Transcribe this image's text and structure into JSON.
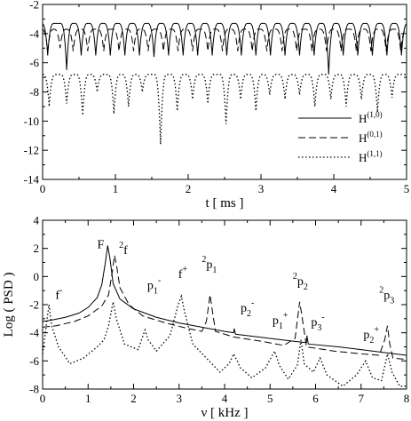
{
  "chart_data": [
    {
      "type": "line",
      "xlabel": "t [ ms ]",
      "ylabel": "",
      "xlim": [
        0,
        5
      ],
      "ylim": [
        -14,
        -2
      ],
      "xticks": [
        0,
        1,
        2,
        3,
        4,
        5
      ],
      "yticks": [
        -2,
        -4,
        -6,
        -8,
        -10,
        -12,
        -14
      ],
      "legend_position": "lower-right",
      "series": [
        {
          "name": "H",
          "name_sup": "(1,0)",
          "style": "solid",
          "baseline": -3.3,
          "dip_times": [
            0.07,
            0.33,
            0.53,
            0.73,
            0.93,
            1.13,
            1.33,
            1.53,
            1.73,
            1.93,
            2.13,
            2.33,
            2.53,
            2.73,
            2.93,
            3.13,
            3.33,
            3.53,
            3.73,
            3.93,
            4.13,
            4.33,
            4.53,
            4.73,
            4.93
          ],
          "dip_values": [
            -5.5,
            -6.5,
            -5.5,
            -5.5,
            -5.5,
            -5.5,
            -5.5,
            -5.6,
            -5.5,
            -5.5,
            -5.5,
            -5.5,
            -5.5,
            -5.5,
            -5.5,
            -5.5,
            -5.5,
            -5.5,
            -5.5,
            -6.8,
            -5.5,
            -5.5,
            -5.5,
            -5.5,
            -5.5
          ]
        },
        {
          "name": "H",
          "name_sup": "(0,1)",
          "style": "dashed",
          "baseline": -3.7,
          "dip_times": [
            0.07,
            0.24,
            0.42,
            0.62,
            0.84,
            1.05,
            1.25,
            1.45,
            1.66,
            1.86,
            2.06,
            2.27,
            2.47,
            2.68,
            2.88,
            3.08,
            3.29,
            3.49,
            3.7,
            3.9,
            4.1,
            4.31,
            4.51,
            4.72,
            4.92
          ],
          "dip_values": [
            -5.2,
            -5.0,
            -5.2,
            -5.2,
            -5.2,
            -5.2,
            -5.2,
            -5.2,
            -5.2,
            -5.2,
            -5.2,
            -5.2,
            -5.2,
            -5.2,
            -5.2,
            -5.2,
            -5.2,
            -5.2,
            -5.2,
            -5.2,
            -5.2,
            -5.2,
            -5.2,
            -5.2,
            -5.2
          ]
        },
        {
          "name": "H",
          "name_sup": "(1,1)",
          "style": "dotted",
          "baseline": -6.8,
          "dip_times": [
            0.09,
            0.33,
            0.55,
            0.75,
            0.98,
            1.18,
            1.37,
            1.62,
            1.85,
            2.06,
            2.27,
            2.52,
            2.72,
            2.93,
            3.12,
            3.33,
            3.53,
            3.74,
            3.96,
            4.17,
            4.38,
            4.6,
            4.8
          ],
          "dip_values": [
            -9.0,
            -8.8,
            -9.6,
            -8.0,
            -9.5,
            -9.0,
            -8.0,
            -11.6,
            -9.3,
            -8.5,
            -8.8,
            -10.2,
            -8.5,
            -9.3,
            -8.2,
            -8.5,
            -8.2,
            -9.0,
            -8.5,
            -9.0,
            -8.5,
            -9.4,
            -8.4
          ]
        }
      ]
    },
    {
      "type": "line",
      "xlabel": "ν [ kHz ]",
      "ylabel": "Log ( PSD )",
      "xlim": [
        0,
        8
      ],
      "ylim": [
        -8,
        4
      ],
      "xticks": [
        0,
        1,
        2,
        3,
        4,
        5,
        6,
        7,
        8
      ],
      "yticks": [
        4,
        2,
        0,
        -2,
        -4,
        -6,
        -8
      ],
      "series": [
        {
          "name": "",
          "style": "solid",
          "points": [
            [
              0,
              -3.2
            ],
            [
              0.2,
              -3.1
            ],
            [
              0.5,
              -2.9
            ],
            [
              0.8,
              -2.6
            ],
            [
              1.0,
              -2.2
            ],
            [
              1.2,
              -1.5
            ],
            [
              1.3,
              -0.6
            ],
            [
              1.38,
              1.0
            ],
            [
              1.43,
              2.2
            ],
            [
              1.48,
              1.3
            ],
            [
              1.55,
              -0.5
            ],
            [
              1.7,
              -1.6
            ],
            [
              2.0,
              -2.3
            ],
            [
              2.5,
              -2.9
            ],
            [
              3.0,
              -3.3
            ],
            [
              3.5,
              -3.6
            ],
            [
              4.0,
              -3.9
            ],
            [
              4.2,
              -4.0
            ],
            [
              4.21,
              -3.7
            ],
            [
              4.24,
              -4.1
            ],
            [
              4.5,
              -4.2
            ],
            [
              5.0,
              -4.4
            ],
            [
              5.5,
              -4.6
            ],
            [
              5.8,
              -4.7
            ],
            [
              5.81,
              -4.2
            ],
            [
              5.84,
              -4.8
            ],
            [
              6.5,
              -5.0
            ],
            [
              7.0,
              -5.2
            ],
            [
              7.5,
              -5.4
            ],
            [
              8.0,
              -5.6
            ]
          ]
        },
        {
          "name": "",
          "style": "dashed",
          "points": [
            [
              0,
              -3.6
            ],
            [
              0.3,
              -3.5
            ],
            [
              0.7,
              -3.2
            ],
            [
              1.0,
              -2.8
            ],
            [
              1.3,
              -2.1
            ],
            [
              1.45,
              -1.3
            ],
            [
              1.53,
              0.3
            ],
            [
              1.58,
              1.5
            ],
            [
              1.63,
              0.7
            ],
            [
              1.7,
              -0.8
            ],
            [
              1.9,
              -2.0
            ],
            [
              2.2,
              -2.8
            ],
            [
              2.7,
              -3.3
            ],
            [
              3.2,
              -3.7
            ],
            [
              3.5,
              -3.9
            ],
            [
              3.6,
              -3.2
            ],
            [
              3.68,
              -1.3
            ],
            [
              3.73,
              -2.4
            ],
            [
              3.8,
              -3.9
            ],
            [
              4.2,
              -4.3
            ],
            [
              4.8,
              -4.6
            ],
            [
              5.3,
              -4.9
            ],
            [
              5.55,
              -4.4
            ],
            [
              5.65,
              -1.8
            ],
            [
              5.7,
              -2.8
            ],
            [
              5.8,
              -5.0
            ],
            [
              6.4,
              -5.3
            ],
            [
              7.0,
              -5.5
            ],
            [
              7.4,
              -5.6
            ],
            [
              7.52,
              -4.5
            ],
            [
              7.58,
              -3.5
            ],
            [
              7.63,
              -4.8
            ],
            [
              7.7,
              -5.8
            ],
            [
              8.0,
              -5.9
            ]
          ]
        },
        {
          "name": "",
          "style": "dotted",
          "points": [
            [
              0,
              -5.5
            ],
            [
              0.08,
              -3.5
            ],
            [
              0.14,
              -2.0
            ],
            [
              0.2,
              -3.5
            ],
            [
              0.35,
              -5.0
            ],
            [
              0.6,
              -6.2
            ],
            [
              0.9,
              -5.8
            ],
            [
              1.2,
              -5.0
            ],
            [
              1.35,
              -4.5
            ],
            [
              1.45,
              -3.5
            ],
            [
              1.55,
              -1.8
            ],
            [
              1.62,
              -3.0
            ],
            [
              1.8,
              -4.8
            ],
            [
              2.1,
              -5.2
            ],
            [
              2.25,
              -3.8
            ],
            [
              2.32,
              -4.5
            ],
            [
              2.5,
              -5.3
            ],
            [
              2.8,
              -4.2
            ],
            [
              2.98,
              -2.0
            ],
            [
              3.05,
              -1.4
            ],
            [
              3.12,
              -2.5
            ],
            [
              3.3,
              -4.8
            ],
            [
              3.6,
              -5.8
            ],
            [
              3.9,
              -6.8
            ],
            [
              4.1,
              -6.2
            ],
            [
              4.2,
              -5.5
            ],
            [
              4.35,
              -6.5
            ],
            [
              4.6,
              -7.2
            ],
            [
              4.9,
              -6.5
            ],
            [
              5.1,
              -5.3
            ],
            [
              5.2,
              -6.3
            ],
            [
              5.4,
              -7.3
            ],
            [
              5.6,
              -6.3
            ],
            [
              5.68,
              -4.5
            ],
            [
              5.75,
              -6.2
            ],
            [
              5.95,
              -6.8
            ],
            [
              6.1,
              -5.8
            ],
            [
              6.25,
              -7.0
            ],
            [
              6.6,
              -7.8
            ],
            [
              6.9,
              -7.0
            ],
            [
              7.1,
              -6.0
            ],
            [
              7.25,
              -7.2
            ],
            [
              7.45,
              -7.4
            ],
            [
              7.58,
              -5.5
            ],
            [
              7.68,
              -6.8
            ],
            [
              7.85,
              -7.8
            ],
            [
              8.0,
              -7.8
            ]
          ]
        }
      ],
      "annotations": [
        {
          "base": "f",
          "sup": "-",
          "sub": "",
          "lead": "",
          "x": 0.28,
          "y": -1.6
        },
        {
          "base": "F",
          "sup": "",
          "sub": "",
          "lead": "",
          "x": 1.2,
          "y": 2.0
        },
        {
          "base": "f",
          "sup": "",
          "sub": "",
          "lead": "2",
          "x": 1.68,
          "y": 1.6
        },
        {
          "base": "p",
          "sup": "-",
          "sub": "1",
          "lead": "",
          "x": 2.3,
          "y": -0.9
        },
        {
          "base": "f",
          "sup": "+",
          "sub": "",
          "lead": "",
          "x": 2.98,
          "y": -0.1
        },
        {
          "base": "p",
          "sup": "",
          "sub": "1",
          "lead": "2",
          "x": 3.5,
          "y": 0.6
        },
        {
          "base": "p",
          "sup": "-",
          "sub": "2",
          "lead": "",
          "x": 4.35,
          "y": -2.5
        },
        {
          "base": "p",
          "sup": "+",
          "sub": "1",
          "lead": "",
          "x": 5.05,
          "y": -3.4
        },
        {
          "base": "p",
          "sup": "",
          "sub": "2",
          "lead": "2",
          "x": 5.5,
          "y": -0.6
        },
        {
          "base": "p",
          "sup": "-",
          "sub": "3",
          "lead": "",
          "x": 5.9,
          "y": -3.5
        },
        {
          "base": "p",
          "sup": "+",
          "sub": "2",
          "lead": "",
          "x": 7.05,
          "y": -4.4
        },
        {
          "base": "p",
          "sup": "",
          "sub": "3",
          "lead": "2",
          "x": 7.4,
          "y": -1.6
        }
      ]
    }
  ]
}
